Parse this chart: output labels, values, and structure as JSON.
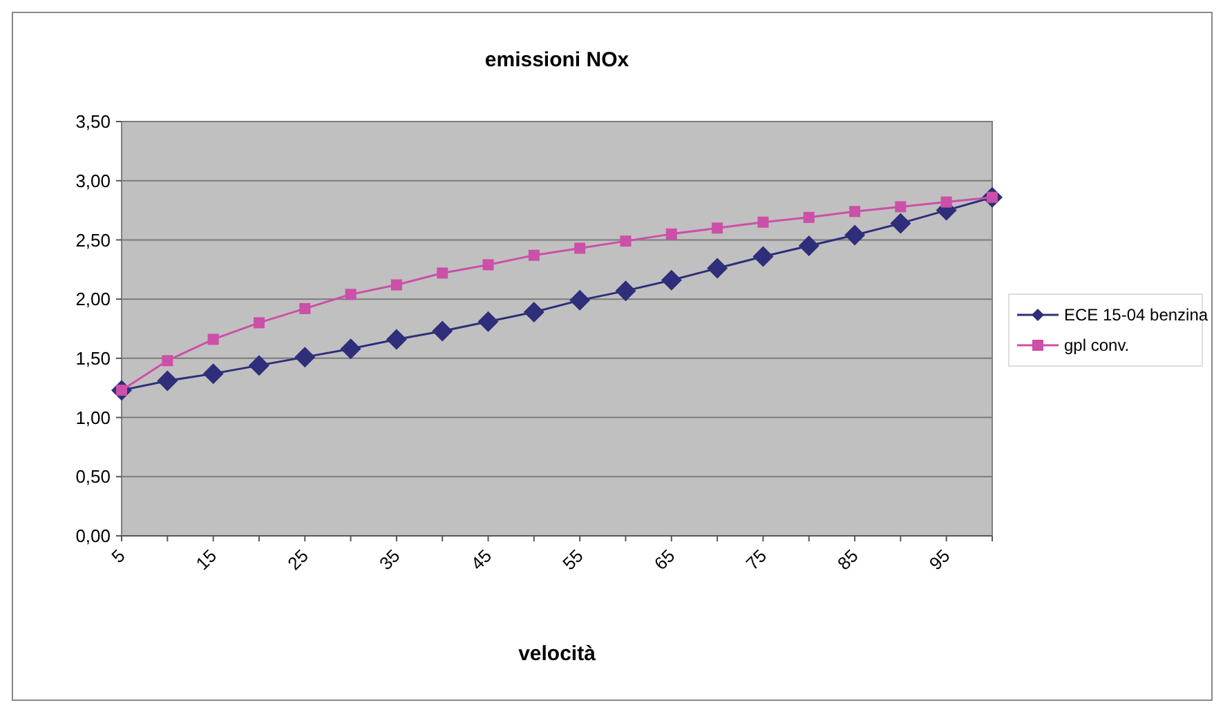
{
  "chart_data": {
    "type": "line",
    "title": "emissioni  NOx",
    "xlabel": "velocità",
    "categories": [
      "5",
      null,
      "15",
      null,
      "25",
      null,
      "35",
      null,
      "45",
      null,
      "55",
      null,
      "65",
      null,
      "75",
      null,
      "85",
      null,
      "95",
      null
    ],
    "series": [
      {
        "name": "ECE 15-04 benzina",
        "color": "#2e2e7a",
        "marker": "diamond",
        "values": [
          1.23,
          1.31,
          1.37,
          1.44,
          1.51,
          1.58,
          1.66,
          1.73,
          1.81,
          1.89,
          1.99,
          2.07,
          2.16,
          2.26,
          2.36,
          2.45,
          2.54,
          2.64,
          2.75,
          2.86
        ]
      },
      {
        "name": "gpl conv.",
        "color": "#cc4fa8",
        "marker": "square",
        "values": [
          1.23,
          1.48,
          1.66,
          1.8,
          1.92,
          2.04,
          2.12,
          2.22,
          2.29,
          2.37,
          2.43,
          2.49,
          2.55,
          2.6,
          2.65,
          2.69,
          2.74,
          2.78,
          2.82,
          2.86
        ]
      }
    ],
    "ylim": [
      0,
      3.5
    ],
    "yticks": [
      {
        "value": 0,
        "label": "0,00"
      },
      {
        "value": 0.5,
        "label": "0,50"
      },
      {
        "value": 1,
        "label": "1,00"
      },
      {
        "value": 1.5,
        "label": "1,50"
      },
      {
        "value": 2,
        "label": "2,00"
      },
      {
        "value": 2.5,
        "label": "2,50"
      },
      {
        "value": 3,
        "label": "3,00"
      },
      {
        "value": 3.5,
        "label": "3,50"
      }
    ],
    "grid": "y",
    "legend": "right"
  }
}
